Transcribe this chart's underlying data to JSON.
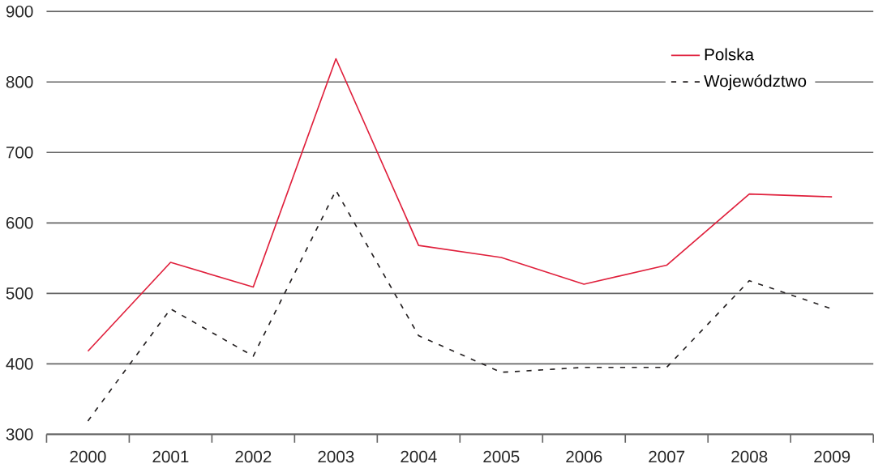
{
  "chart_data": {
    "type": "line",
    "categories": [
      "2000",
      "2001",
      "2002",
      "2003",
      "2004",
      "2005",
      "2006",
      "2007",
      "2008",
      "2009"
    ],
    "series": [
      {
        "name": "Polska",
        "color": "#e0203c",
        "line_style": "solid",
        "values": [
          418,
          544,
          509,
          833,
          568,
          551,
          513,
          540,
          641,
          637
        ]
      },
      {
        "name": "Województwo",
        "color": "#231f20",
        "line_style": "dashed",
        "values": [
          319,
          478,
          411,
          646,
          440,
          388,
          395,
          395,
          518,
          478
        ]
      }
    ],
    "ylim": [
      300,
      900
    ],
    "yticks": [
      300,
      400,
      500,
      600,
      700,
      800,
      900
    ],
    "grid": "y",
    "legend": "top right",
    "marker": "none"
  }
}
